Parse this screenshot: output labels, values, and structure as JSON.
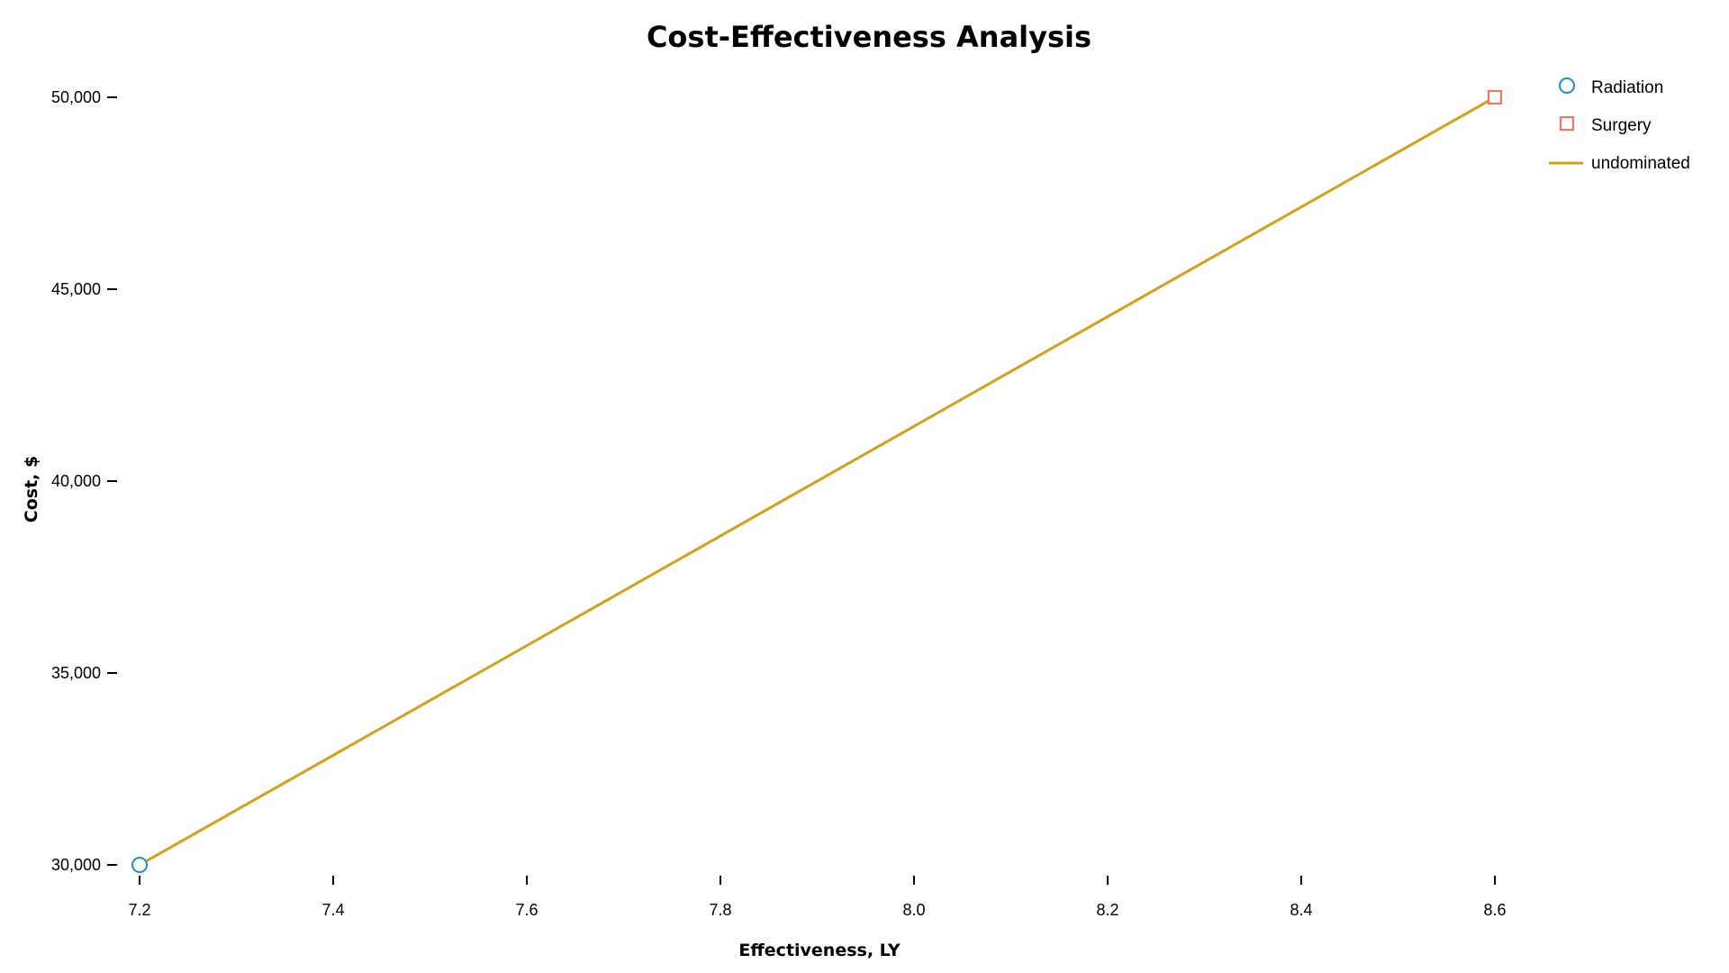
{
  "chart_data": {
    "type": "scatter",
    "title": "Cost-Effectiveness Analysis",
    "xlabel": "Effectiveness, LY",
    "ylabel": "Cost, $",
    "xlim": [
      7.2,
      8.6
    ],
    "ylim": [
      30000,
      50000
    ],
    "xticks": [
      "7.2",
      "7.4",
      "7.6",
      "7.8",
      "8.0",
      "8.2",
      "8.4",
      "8.6"
    ],
    "yticks": [
      "30,000",
      "35,000",
      "40,000",
      "45,000",
      "50,000"
    ],
    "grid": false,
    "legend_position": "top-right",
    "series": [
      {
        "name": "Radiation",
        "marker": "circle",
        "color": "#1e88e5",
        "points": [
          {
            "x": 7.2,
            "y": 30000
          }
        ]
      },
      {
        "name": "Surgery",
        "marker": "square",
        "color": "#ff6f5a",
        "points": [
          {
            "x": 8.6,
            "y": 50000
          }
        ]
      },
      {
        "name": "undominated",
        "kind": "line",
        "color": "#d4a017",
        "points": [
          {
            "x": 7.2,
            "y": 30000
          },
          {
            "x": 8.6,
            "y": 50000
          }
        ]
      }
    ]
  }
}
